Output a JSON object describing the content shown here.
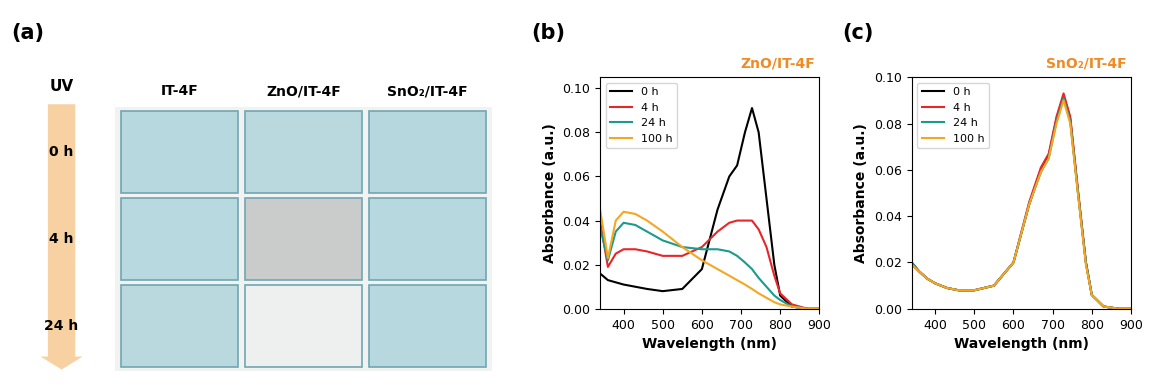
{
  "photo": {
    "panel_label": "(a)",
    "arrow_label": "UV",
    "columns": [
      "IT-4F",
      "ZnO/IT-4F",
      "SnO₂/IT-4F"
    ],
    "rows": [
      {
        "label": "0 h",
        "colors": [
          "#b7d8de",
          "#b9d9df",
          "#b5d7dd"
        ]
      },
      {
        "label": "4 h",
        "colors": [
          "#b8d9df",
          "#c9cccb",
          "#b6d8de"
        ]
      },
      {
        "label": "24 h",
        "colors": [
          "#bad9df",
          "#eef0ef",
          "#b7d8de"
        ]
      }
    ]
  },
  "chart_data": [
    {
      "type": "line",
      "panel_label": "(b)",
      "annotation": "ZnO/IT-4F",
      "x_label": "Wavelength (nm)",
      "y_label": "Absorbance (a.u.)",
      "x": [
        340,
        360,
        380,
        400,
        430,
        460,
        500,
        550,
        600,
        640,
        670,
        690,
        710,
        728,
        745,
        765,
        785,
        800,
        830,
        870,
        900
      ],
      "series": [
        {
          "name": "0 h",
          "color": "#000000",
          "values": [
            0.016,
            0.013,
            0.012,
            0.011,
            0.01,
            0.009,
            0.008,
            0.009,
            0.018,
            0.045,
            0.06,
            0.065,
            0.08,
            0.091,
            0.08,
            0.05,
            0.02,
            0.006,
            0.001,
            0,
            0
          ]
        },
        {
          "name": "4 h",
          "color": "#e8262a",
          "values": [
            0.04,
            0.019,
            0.025,
            0.027,
            0.027,
            0.026,
            0.024,
            0.024,
            0.028,
            0.035,
            0.039,
            0.04,
            0.04,
            0.04,
            0.036,
            0.028,
            0.015,
            0.007,
            0.002,
            0,
            0
          ]
        },
        {
          "name": "24 h",
          "color": "#1a9b8c",
          "values": [
            0.037,
            0.022,
            0.035,
            0.039,
            0.038,
            0.035,
            0.031,
            0.028,
            0.027,
            0.027,
            0.026,
            0.024,
            0.021,
            0.018,
            0.014,
            0.01,
            0.006,
            0.004,
            0.001,
            0,
            0
          ]
        },
        {
          "name": "100 h",
          "color": "#f5a623",
          "values": [
            0.045,
            0.023,
            0.04,
            0.044,
            0.043,
            0.04,
            0.035,
            0.028,
            0.022,
            0.018,
            0.015,
            0.013,
            0.011,
            0.009,
            0.007,
            0.005,
            0.003,
            0.002,
            0.001,
            0,
            0
          ]
        }
      ],
      "xlim": [
        340,
        900
      ],
      "xticks": [
        400,
        500,
        600,
        700,
        800,
        900
      ],
      "ylim": [
        0,
        0.105
      ],
      "yticks": [
        {
          "value": 0,
          "label": "0.00"
        },
        {
          "value": 0.02,
          "label": "0.02"
        },
        {
          "value": 0.04,
          "label": "0.04"
        },
        {
          "value": 0.06,
          "label": "0.06"
        },
        {
          "value": 0.08,
          "label": "0.08"
        },
        {
          "value": 0.1,
          "label": "0.10"
        }
      ],
      "legend": "upper left"
    },
    {
      "type": "line",
      "panel_label": "(c)",
      "annotation": "SnO₂/IT-4F",
      "x_label": "Wavelength (nm)",
      "y_label": "Absorbance (a.u.)",
      "x": [
        340,
        360,
        380,
        400,
        430,
        460,
        500,
        550,
        600,
        640,
        670,
        690,
        710,
        728,
        745,
        765,
        785,
        800,
        830,
        870,
        900
      ],
      "series": [
        {
          "name": "0 h",
          "color": "#000000",
          "values": [
            0.02,
            0.016,
            0.013,
            0.011,
            0.009,
            0.008,
            0.008,
            0.01,
            0.02,
            0.045,
            0.06,
            0.066,
            0.082,
            0.092,
            0.082,
            0.05,
            0.02,
            0.006,
            0.001,
            0,
            0
          ]
        },
        {
          "name": "4 h",
          "color": "#e8262a",
          "values": [
            0.019,
            0.016,
            0.013,
            0.011,
            0.009,
            0.008,
            0.008,
            0.01,
            0.02,
            0.046,
            0.061,
            0.067,
            0.083,
            0.093,
            0.083,
            0.051,
            0.02,
            0.006,
            0.001,
            0,
            0
          ]
        },
        {
          "name": "24 h",
          "color": "#1a9b8c",
          "values": [
            0.02,
            0.016,
            0.013,
            0.011,
            0.009,
            0.008,
            0.008,
            0.01,
            0.02,
            0.045,
            0.059,
            0.065,
            0.081,
            0.091,
            0.081,
            0.05,
            0.02,
            0.006,
            0.001,
            0,
            0
          ]
        },
        {
          "name": "100 h",
          "color": "#f5a623",
          "values": [
            0.019,
            0.016,
            0.013,
            0.011,
            0.009,
            0.008,
            0.008,
            0.01,
            0.02,
            0.045,
            0.059,
            0.065,
            0.08,
            0.09,
            0.08,
            0.049,
            0.019,
            0.006,
            0.001,
            0,
            0
          ]
        }
      ],
      "xlim": [
        340,
        900
      ],
      "xticks": [
        400,
        500,
        600,
        700,
        800,
        900
      ],
      "ylim": [
        0,
        0.1
      ],
      "yticks": [
        {
          "value": 0,
          "label": "0.00"
        },
        {
          "value": 0.02,
          "label": "0.02"
        },
        {
          "value": 0.04,
          "label": "0.04"
        },
        {
          "value": 0.06,
          "label": "0.06"
        },
        {
          "value": 0.08,
          "label": "0.08"
        },
        {
          "value": 0.1,
          "label": "0.10"
        }
      ],
      "legend": "upper left"
    }
  ]
}
